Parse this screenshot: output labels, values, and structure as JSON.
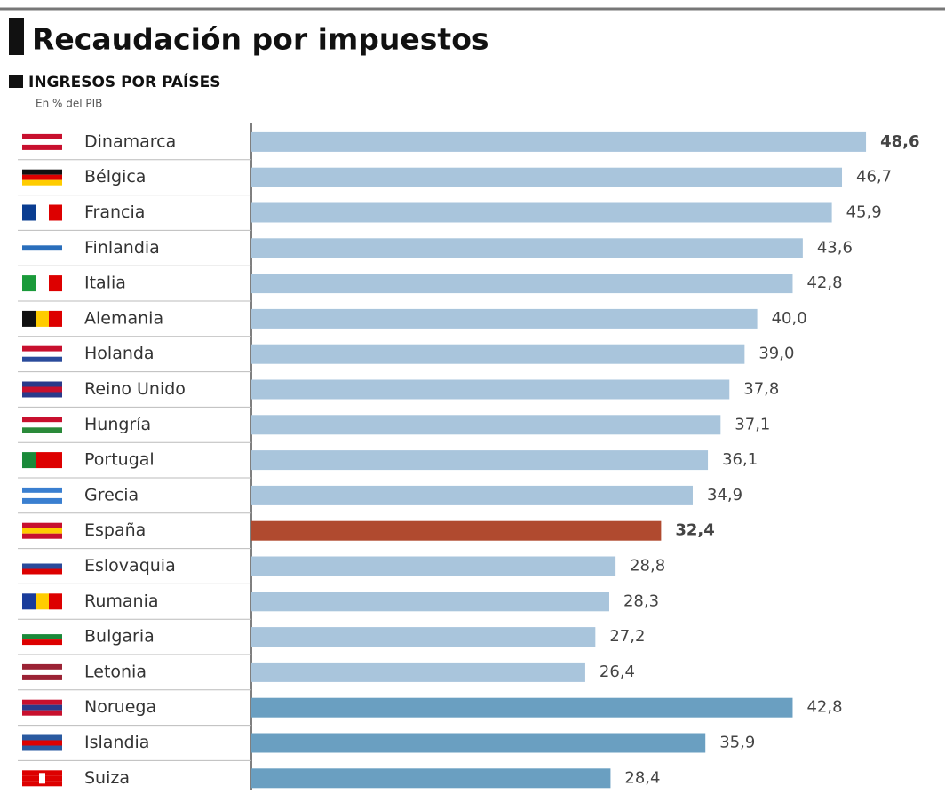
{
  "chart_data": {
    "type": "bar",
    "orientation": "horizontal",
    "title": "Recaudación por impuestos",
    "subtitle": "INGRESOS POR PAÍSES",
    "unit_label": "En % del PIB",
    "categories": [
      "Dinamarca",
      "Bélgica",
      "Francia",
      "Finlandia",
      "Italia",
      "Alemania",
      "Holanda",
      "Reino Unido",
      "Hungría",
      "Portugal",
      "Grecia",
      "España",
      "Eslovaquia",
      "Rumania",
      "Bulgaria",
      "Letonia",
      "Noruega",
      "Islandia",
      "Suiza"
    ],
    "values": [
      48.6,
      46.7,
      45.9,
      43.6,
      42.8,
      40.0,
      39.0,
      37.8,
      37.1,
      36.1,
      34.9,
      32.4,
      28.8,
      28.3,
      27.2,
      26.4,
      42.8,
      35.9,
      28.4
    ],
    "value_labels": [
      "48,6",
      "46,7",
      "45,9",
      "43,6",
      "42,8",
      "40,0",
      "39,0",
      "37,8",
      "37,1",
      "36,1",
      "34,9",
      "32,4",
      "28,8",
      "28,3",
      "27,2",
      "26,4",
      "42,8",
      "35,9",
      "28,4"
    ],
    "colors": [
      "#a9c5dc",
      "#a9c5dc",
      "#a9c5dc",
      "#a9c5dc",
      "#a9c5dc",
      "#a9c5dc",
      "#a9c5dc",
      "#a9c5dc",
      "#a9c5dc",
      "#a9c5dc",
      "#a9c5dc",
      "#b04a2f",
      "#a9c5dc",
      "#a9c5dc",
      "#a9c5dc",
      "#a9c5dc",
      "#6a9fc1",
      "#6a9fc1",
      "#6a9fc1"
    ],
    "xlim": [
      0,
      50
    ]
  }
}
